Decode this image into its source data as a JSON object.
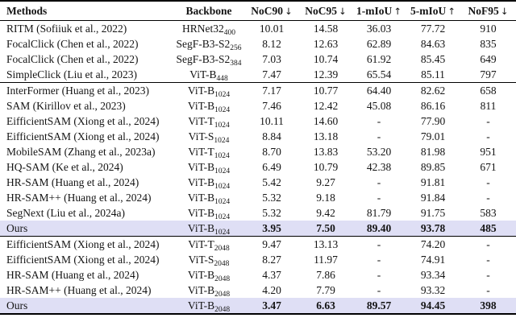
{
  "colors": {
    "highlight_row": "#dfdff5",
    "rule": "#000000",
    "text": "#141414",
    "background": "#ffffff"
  },
  "table": {
    "header": {
      "methods_label": "Methods",
      "backbone_label": "Backbone",
      "metrics": [
        {
          "label": "NoC90",
          "arrow": "↓"
        },
        {
          "label": "NoC95",
          "arrow": "↓"
        },
        {
          "label": "1-mIoU",
          "arrow": "↑"
        },
        {
          "label": "5-mIoU",
          "arrow": "↑"
        },
        {
          "label": "NoF95",
          "arrow": "↓"
        }
      ]
    },
    "groups": [
      {
        "rows": [
          {
            "method": "RITM (Sofiiuk et al., 2022)",
            "backbone": "HRNet32",
            "backbone_sub": "400",
            "values": [
              "10.01",
              "14.58",
              "36.03",
              "77.72",
              "910"
            ],
            "highlight": false,
            "bold_values": false
          },
          {
            "method": "FocalClick (Chen et al., 2022)",
            "backbone": "SegF-B3-S2",
            "backbone_sub": "256",
            "values": [
              "8.12",
              "12.63",
              "62.89",
              "84.63",
              "835"
            ],
            "highlight": false,
            "bold_values": false
          },
          {
            "method": "FocalClick (Chen et al., 2022)",
            "backbone": "SegF-B3-S2",
            "backbone_sub": "384",
            "values": [
              "7.03",
              "10.74",
              "61.92",
              "85.45",
              "649"
            ],
            "highlight": false,
            "bold_values": false
          },
          {
            "method": "SimpleClick (Liu et al., 2023)",
            "backbone": "ViT-B",
            "backbone_sub": "448",
            "values": [
              "7.47",
              "12.39",
              "65.54",
              "85.11",
              "797"
            ],
            "highlight": false,
            "bold_values": false
          }
        ]
      },
      {
        "rows": [
          {
            "method": "InterFormer (Huang et al., 2023)",
            "backbone": "ViT-B",
            "backbone_sub": "1024",
            "values": [
              "7.17",
              "10.77",
              "64.40",
              "82.62",
              "658"
            ],
            "highlight": false,
            "bold_values": false
          },
          {
            "method": "SAM (Kirillov et al., 2023)",
            "backbone": "ViT-B",
            "backbone_sub": "1024",
            "values": [
              "7.46",
              "12.42",
              "45.08",
              "86.16",
              "811"
            ],
            "highlight": false,
            "bold_values": false
          },
          {
            "method": "EifficientSAM (Xiong et al., 2024)",
            "backbone": "ViT-T",
            "backbone_sub": "1024",
            "values": [
              "10.11",
              "14.60",
              "-",
              "77.90",
              "-"
            ],
            "highlight": false,
            "bold_values": false
          },
          {
            "method": "EifficientSAM (Xiong et al., 2024)",
            "backbone": "ViT-S",
            "backbone_sub": "1024",
            "values": [
              "8.84",
              "13.18",
              "-",
              "79.01",
              "-"
            ],
            "highlight": false,
            "bold_values": false
          },
          {
            "method": "MobileSAM (Zhang et al., 2023a)",
            "backbone": "ViT-T",
            "backbone_sub": "1024",
            "values": [
              "8.70",
              "13.83",
              "53.20",
              "81.98",
              "951"
            ],
            "highlight": false,
            "bold_values": false
          },
          {
            "method": "HQ-SAM (Ke et al., 2024)",
            "backbone": "ViT-B",
            "backbone_sub": "1024",
            "values": [
              "6.49",
              "10.79",
              "42.38",
              "89.85",
              "671"
            ],
            "highlight": false,
            "bold_values": false
          },
          {
            "method": "HR-SAM (Huang et al., 2024)",
            "backbone": "ViT-B",
            "backbone_sub": "1024",
            "values": [
              "5.42",
              "9.27",
              "-",
              "91.81",
              "-"
            ],
            "highlight": false,
            "bold_values": false
          },
          {
            "method": "HR-SAM++ (Huang et al., 2024)",
            "backbone": "ViT-B",
            "backbone_sub": "1024",
            "values": [
              "5.32",
              "9.18",
              "-",
              "91.84",
              "-"
            ],
            "highlight": false,
            "bold_values": false
          },
          {
            "method": "SegNext (Liu et al., 2024a)",
            "backbone": "ViT-B",
            "backbone_sub": "1024",
            "values": [
              "5.32",
              "9.42",
              "81.79",
              "91.75",
              "583"
            ],
            "highlight": false,
            "bold_values": false
          },
          {
            "method": "Ours",
            "backbone": "ViT-B",
            "backbone_sub": "1024",
            "values": [
              "3.95",
              "7.50",
              "89.40",
              "93.78",
              "485"
            ],
            "highlight": true,
            "bold_values": true
          }
        ]
      },
      {
        "rows": [
          {
            "method": "EifficientSAM (Xiong et al., 2024)",
            "backbone": "ViT-T",
            "backbone_sub": "2048",
            "values": [
              "9.47",
              "13.13",
              "-",
              "74.20",
              "-"
            ],
            "highlight": false,
            "bold_values": false
          },
          {
            "method": "EifficientSAM (Xiong et al., 2024)",
            "backbone": "ViT-S",
            "backbone_sub": "2048",
            "values": [
              "8.27",
              "11.97",
              "-",
              "74.91",
              "-"
            ],
            "highlight": false,
            "bold_values": false
          },
          {
            "method": "HR-SAM (Huang et al., 2024)",
            "backbone": "ViT-B",
            "backbone_sub": "2048",
            "values": [
              "4.37",
              "7.86",
              "-",
              "93.34",
              "-"
            ],
            "highlight": false,
            "bold_values": false
          },
          {
            "method": "HR-SAM++ (Huang et al., 2024)",
            "backbone": "ViT-B",
            "backbone_sub": "2048",
            "values": [
              "4.20",
              "7.79",
              "-",
              "93.32",
              "-"
            ],
            "highlight": false,
            "bold_values": false
          },
          {
            "method": "Ours",
            "backbone": "ViT-B",
            "backbone_sub": "2048",
            "values": [
              "3.47",
              "6.63",
              "89.57",
              "94.45",
              "398"
            ],
            "highlight": true,
            "bold_values": true
          }
        ]
      }
    ]
  }
}
